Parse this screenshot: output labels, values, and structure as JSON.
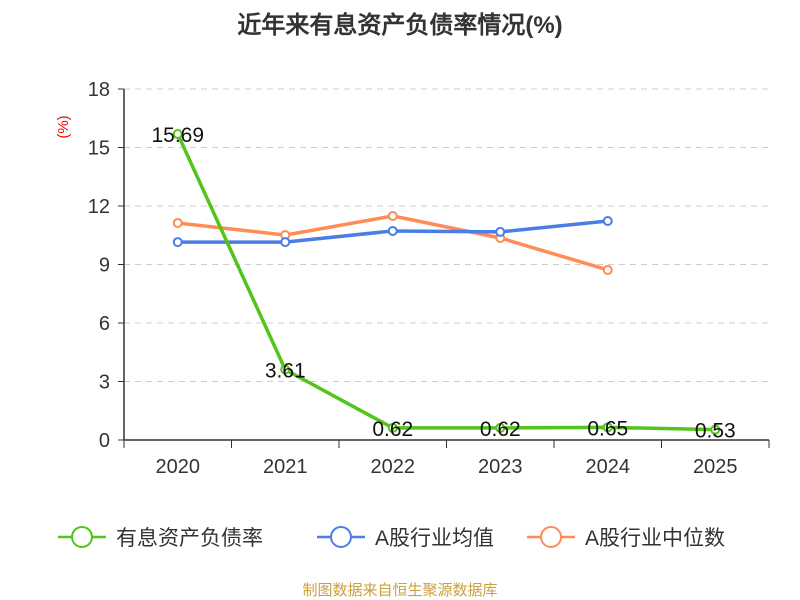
{
  "chart_data": {
    "type": "line",
    "title": "近年来有息资产负债率情况(%)",
    "ylabel": "(%)",
    "categories": [
      "2020",
      "2021",
      "2022",
      "2023",
      "2024",
      "2025"
    ],
    "ylim": [
      0,
      18
    ],
    "yticks": [
      0,
      3,
      6,
      9,
      12,
      15,
      18
    ],
    "grid": true,
    "legend": "bottom",
    "series": [
      {
        "name": "有息资产负债率",
        "color": "#52c41a",
        "values": [
          15.69,
          3.61,
          0.62,
          0.62,
          0.65,
          0.53
        ],
        "labels": [
          "15.69",
          "3.61",
          "0.62",
          "0.62",
          "0.65",
          "0.53"
        ]
      },
      {
        "name": "A股行业均值",
        "color": "#4a7ee6",
        "values": [
          10.15,
          10.15,
          10.72,
          10.67,
          11.23,
          null
        ]
      },
      {
        "name": "A股行业中位数",
        "color": "#ff8c55",
        "values": [
          11.13,
          10.51,
          11.49,
          10.36,
          8.72,
          null
        ]
      }
    ]
  },
  "footer": "制图数据来自恒生聚源数据库"
}
